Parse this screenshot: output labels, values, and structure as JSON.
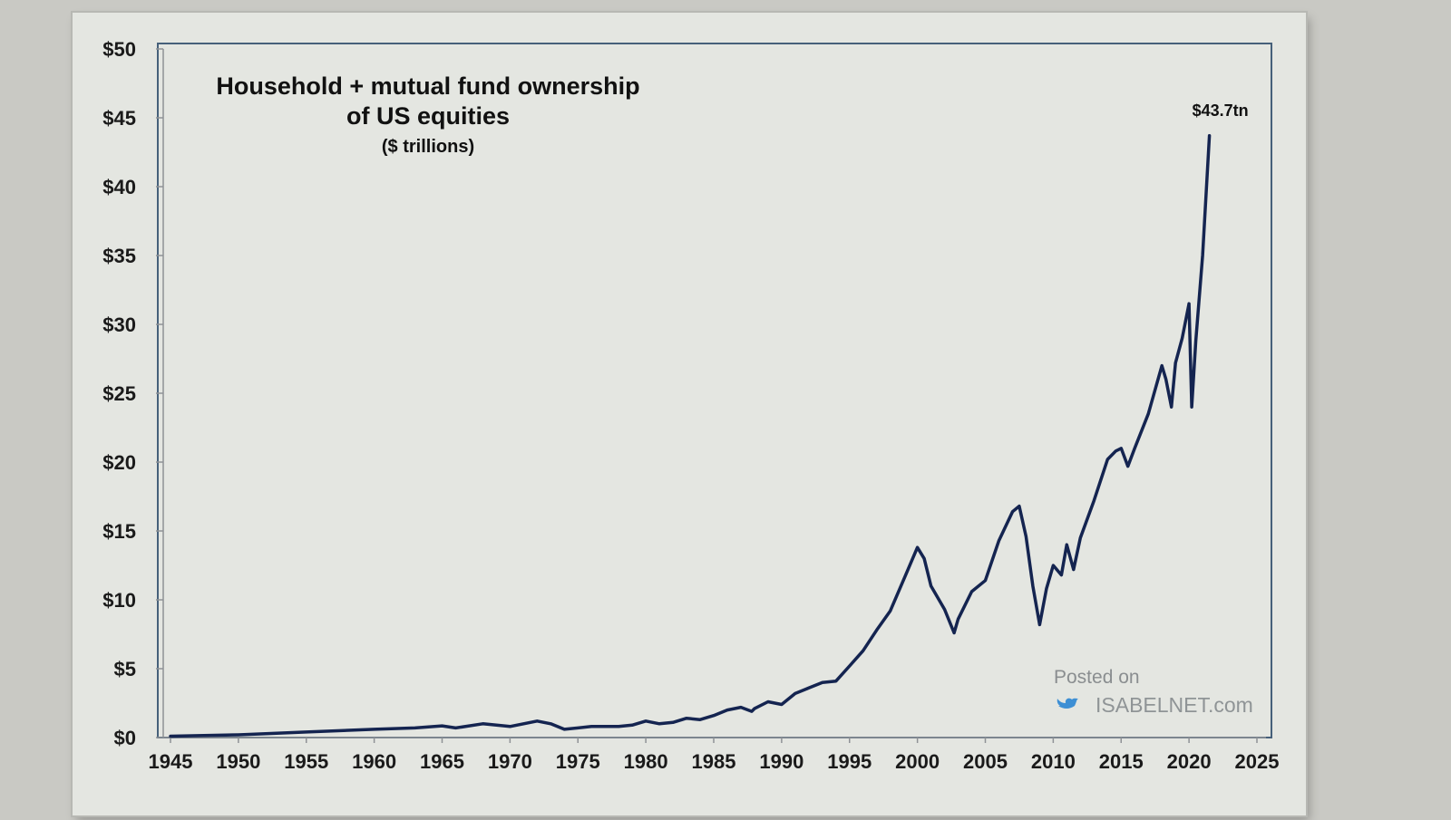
{
  "colors": {
    "line": "#142450",
    "frame": "#46607a",
    "background": "#e4e6e1"
  },
  "watermark": {
    "posted": "Posted on",
    "site": "ISABELNET.com",
    "icon": "twitter-bird-icon"
  },
  "chart_data": {
    "type": "line",
    "title_line1": "Household + mutual fund ownership",
    "title_line2": "of US equities",
    "subtitle": "($ trillions)",
    "xlabel": "",
    "ylabel": "",
    "xlim": [
      1945,
      2025
    ],
    "ylim": [
      0,
      50
    ],
    "x_ticks": [
      "1945",
      "1950",
      "1955",
      "1960",
      "1965",
      "1970",
      "1975",
      "1980",
      "1985",
      "1990",
      "1995",
      "2000",
      "2005",
      "2010",
      "2015",
      "2020",
      "2025"
    ],
    "y_ticks": [
      "$0",
      "$5",
      "$10",
      "$15",
      "$20",
      "$25",
      "$30",
      "$35",
      "$40",
      "$45",
      "$50"
    ],
    "y_tick_values": [
      0,
      5,
      10,
      15,
      20,
      25,
      30,
      35,
      40,
      45,
      50
    ],
    "grid": false,
    "annotation": {
      "text": "$43.7tn",
      "x": 2021.5,
      "y": 43.7
    },
    "series": [
      {
        "values": [
          [
            1945,
            0.1
          ],
          [
            1950,
            0.2
          ],
          [
            1955,
            0.4
          ],
          [
            1960,
            0.6
          ],
          [
            1963,
            0.7
          ],
          [
            1965,
            0.85
          ],
          [
            1966,
            0.7
          ],
          [
            1968,
            1.0
          ],
          [
            1969,
            0.9
          ],
          [
            1970,
            0.8
          ],
          [
            1972,
            1.2
          ],
          [
            1973,
            1.0
          ],
          [
            1974,
            0.6
          ],
          [
            1976,
            0.8
          ],
          [
            1978,
            0.8
          ],
          [
            1979,
            0.9
          ],
          [
            1980,
            1.2
          ],
          [
            1981,
            1.0
          ],
          [
            1982,
            1.1
          ],
          [
            1983,
            1.4
          ],
          [
            1984,
            1.3
          ],
          [
            1985,
            1.6
          ],
          [
            1986,
            2.0
          ],
          [
            1987,
            2.2
          ],
          [
            1987.8,
            1.9
          ],
          [
            1988,
            2.1
          ],
          [
            1989,
            2.6
          ],
          [
            1990,
            2.4
          ],
          [
            1991,
            3.2
          ],
          [
            1992,
            3.6
          ],
          [
            1993,
            4.0
          ],
          [
            1994,
            4.1
          ],
          [
            1995,
            5.2
          ],
          [
            1996,
            6.3
          ],
          [
            1997,
            7.8
          ],
          [
            1998,
            9.2
          ],
          [
            1999,
            11.5
          ],
          [
            2000,
            13.8
          ],
          [
            2000.5,
            13.0
          ],
          [
            2001,
            11.0
          ],
          [
            2002,
            9.3
          ],
          [
            2002.7,
            7.6
          ],
          [
            2003,
            8.6
          ],
          [
            2004,
            10.6
          ],
          [
            2005,
            11.4
          ],
          [
            2006,
            14.3
          ],
          [
            2007,
            16.4
          ],
          [
            2007.5,
            16.8
          ],
          [
            2008,
            14.6
          ],
          [
            2008.5,
            11.0
          ],
          [
            2009,
            8.2
          ],
          [
            2009.5,
            10.8
          ],
          [
            2010,
            12.5
          ],
          [
            2010.6,
            11.8
          ],
          [
            2011,
            14.0
          ],
          [
            2011.5,
            12.2
          ],
          [
            2012,
            14.5
          ],
          [
            2013,
            17.2
          ],
          [
            2014,
            20.2
          ],
          [
            2014.6,
            20.8
          ],
          [
            2015,
            21.0
          ],
          [
            2015.5,
            19.7
          ],
          [
            2016,
            21.0
          ],
          [
            2017,
            23.5
          ],
          [
            2018,
            27.0
          ],
          [
            2018.3,
            26.0
          ],
          [
            2018.7,
            24.0
          ],
          [
            2019,
            27.2
          ],
          [
            2019.5,
            29.0
          ],
          [
            2020,
            31.5
          ],
          [
            2020.2,
            24.0
          ],
          [
            2020.5,
            28.8
          ],
          [
            2021,
            35.0
          ],
          [
            2021.5,
            43.7
          ]
        ]
      }
    ]
  }
}
